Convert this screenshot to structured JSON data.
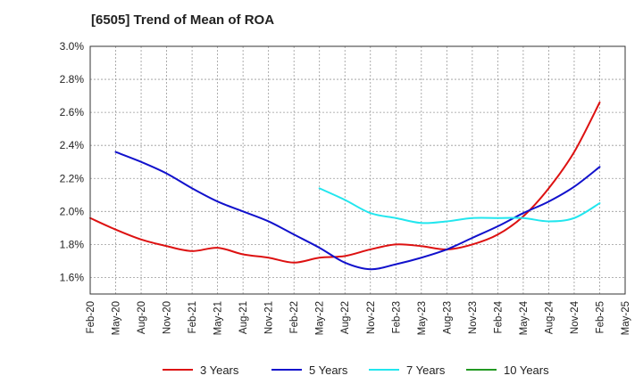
{
  "chart_data": {
    "type": "line",
    "title": "[6505]  Trend of Mean of ROA",
    "xlabel": "",
    "ylabel": "",
    "ylim": [
      1.5,
      3.0
    ],
    "yticks": [
      1.6,
      1.8,
      2.0,
      2.2,
      2.4,
      2.6,
      2.8,
      3.0
    ],
    "ytick_labels": [
      "1.6%",
      "1.8%",
      "2.0%",
      "2.2%",
      "2.4%",
      "2.6%",
      "2.8%",
      "3.0%"
    ],
    "x_labels": [
      "Feb-20",
      "May-20",
      "Aug-20",
      "Nov-20",
      "Feb-21",
      "May-21",
      "Aug-21",
      "Nov-21",
      "Feb-22",
      "May-22",
      "Aug-22",
      "Nov-22",
      "Feb-23",
      "May-23",
      "Aug-23",
      "Nov-23",
      "Feb-24",
      "May-24",
      "Aug-24",
      "Nov-24",
      "Feb-25",
      "May-25"
    ],
    "grid": true,
    "legend_position": "bottom",
    "series": [
      {
        "name": "3 Years",
        "color": "#dd1111",
        "values": [
          1.96,
          1.89,
          1.83,
          1.79,
          1.76,
          1.78,
          1.74,
          1.72,
          1.69,
          1.72,
          1.73,
          1.77,
          1.8,
          1.79,
          1.77,
          1.8,
          1.86,
          1.97,
          2.14,
          2.36,
          2.66,
          null
        ]
      },
      {
        "name": "5 Years",
        "color": "#1111cc",
        "values": [
          null,
          2.36,
          2.3,
          2.23,
          2.14,
          2.06,
          2.0,
          1.94,
          1.86,
          1.78,
          1.69,
          1.65,
          1.68,
          1.72,
          1.77,
          1.84,
          1.91,
          1.99,
          2.06,
          2.15,
          2.27,
          null
        ]
      },
      {
        "name": "7 Years",
        "color": "#22e6ee",
        "values": [
          null,
          null,
          null,
          null,
          null,
          null,
          null,
          null,
          null,
          2.14,
          2.07,
          1.99,
          1.96,
          1.93,
          1.94,
          1.96,
          1.96,
          1.96,
          1.94,
          1.96,
          2.05,
          null
        ]
      },
      {
        "name": "10 Years",
        "color": "#229922",
        "values": [
          null,
          null,
          null,
          null,
          null,
          null,
          null,
          null,
          null,
          null,
          null,
          null,
          null,
          null,
          null,
          null,
          null,
          null,
          null,
          null,
          null,
          null
        ]
      }
    ]
  }
}
